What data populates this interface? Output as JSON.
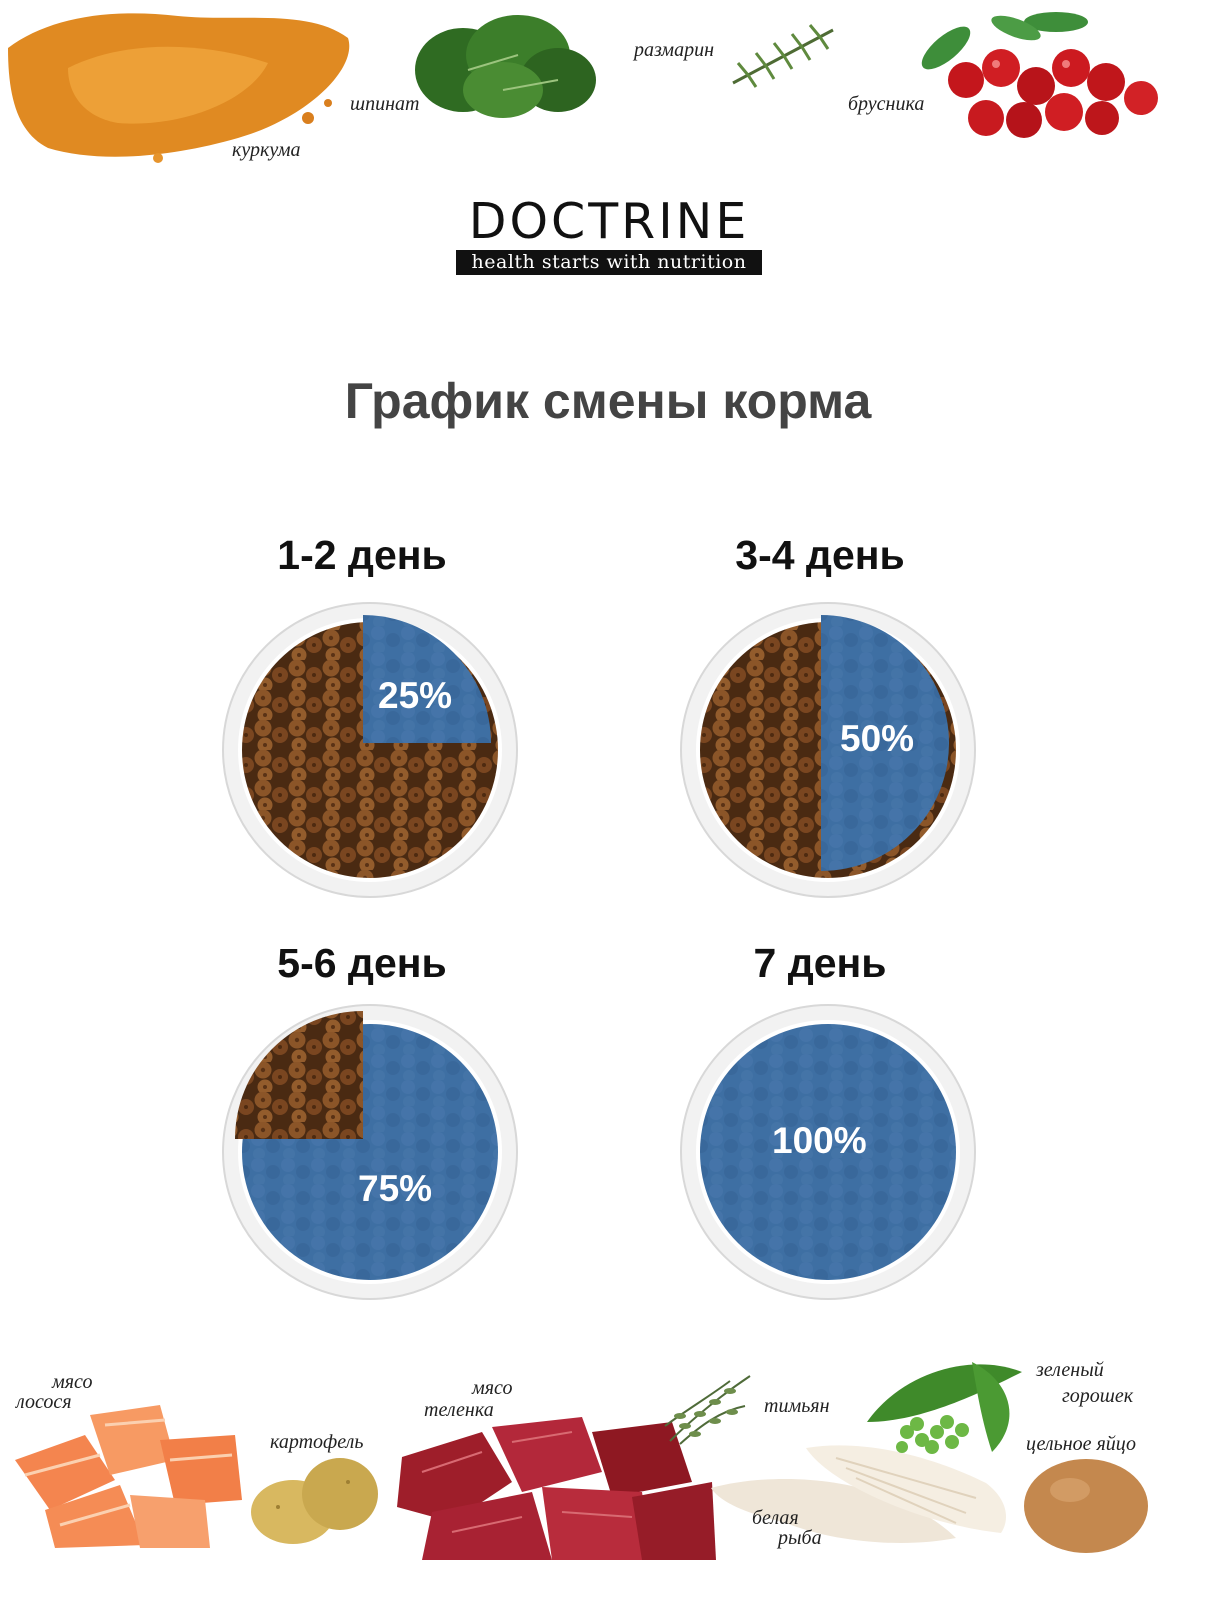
{
  "brand": {
    "name": "DOCTRINE",
    "tagline": "health starts with nutrition"
  },
  "title": "График смены корма",
  "top_ingredients": [
    {
      "label": "куркума",
      "icon": "turmeric-powder-icon"
    },
    {
      "label": "шпинат",
      "icon": "spinach-icon"
    },
    {
      "label": "размарин",
      "icon": "rosemary-icon"
    },
    {
      "label": "брусника",
      "icon": "lingonberry-icon"
    }
  ],
  "schedule": [
    {
      "day_label": "1-2 день",
      "new_food_percent_label": "25%",
      "new_food_fraction": 0.25
    },
    {
      "day_label": "3-4 день",
      "new_food_percent_label": "50%",
      "new_food_fraction": 0.5
    },
    {
      "day_label": "5-6 день",
      "new_food_percent_label": "75%",
      "new_food_fraction": 0.75
    },
    {
      "day_label": "7 день",
      "new_food_percent_label": "100%",
      "new_food_fraction": 1.0
    }
  ],
  "bottom_ingredients": [
    {
      "label_line1": "мясо",
      "label_line2": "лосося",
      "icon": "salmon-icon"
    },
    {
      "label_line1": "картофель",
      "label_line2": "",
      "icon": "potato-icon"
    },
    {
      "label_line1": "мясо",
      "label_line2": "теленка",
      "icon": "veal-icon"
    },
    {
      "label_line1": "тимьян",
      "label_line2": "",
      "icon": "thyme-icon"
    },
    {
      "label_line1": "белая",
      "label_line2": "рыба",
      "icon": "white-fish-icon"
    },
    {
      "label_line1": "зеленый",
      "label_line2": "горошек",
      "icon": "green-peas-icon"
    },
    {
      "label_line1": "цельное яйцо",
      "label_line2": "",
      "icon": "egg-icon"
    }
  ],
  "colors": {
    "new_food_blue": "#3E6FA3",
    "old_food_brown": "#7A4A22",
    "bowl_rim": "#E6E6E6",
    "title_gray": "#444444"
  }
}
